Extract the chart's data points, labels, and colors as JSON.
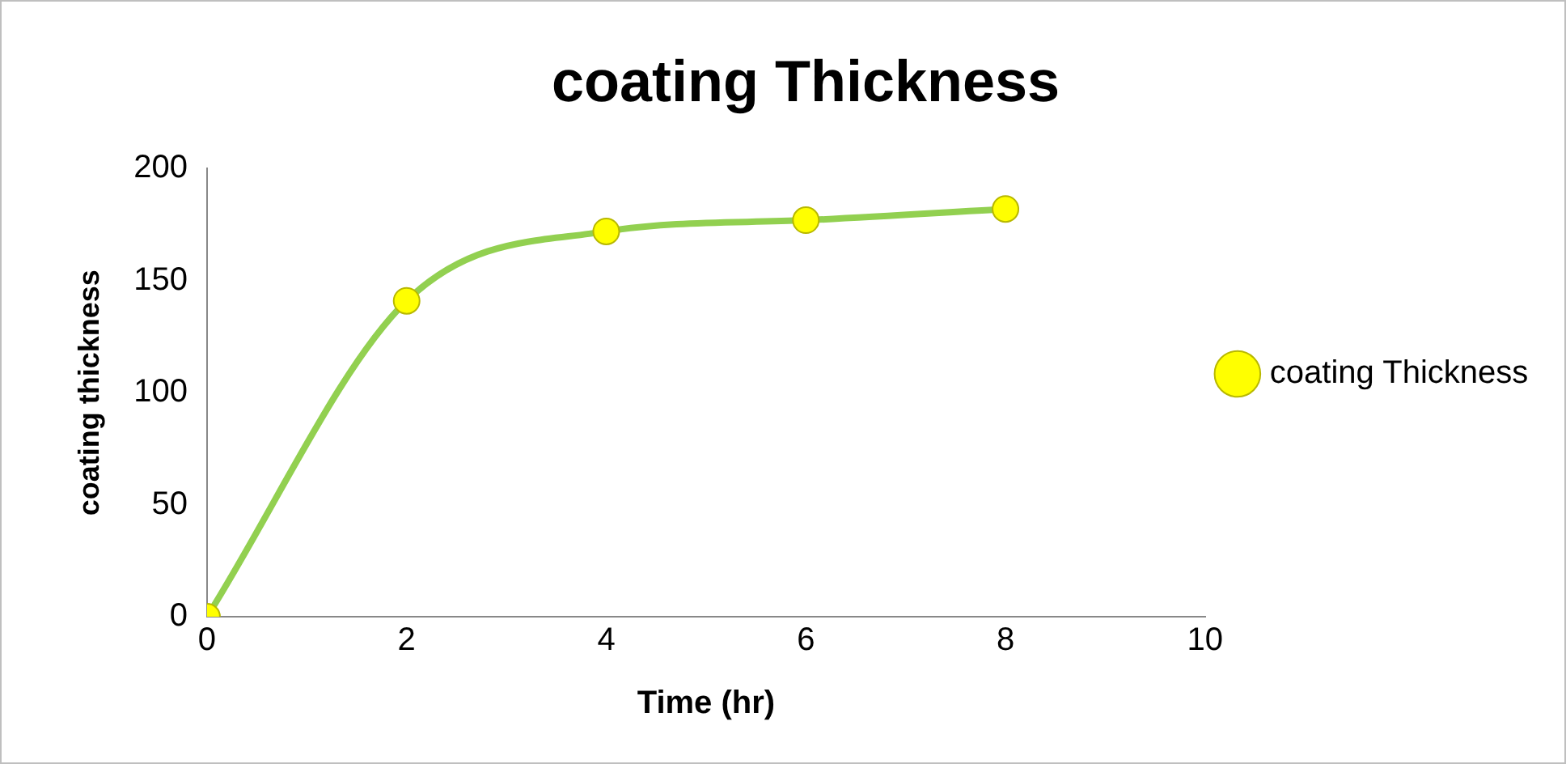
{
  "chart_data": {
    "type": "line",
    "title": "coating Thickness",
    "xlabel": "Time (hr)",
    "ylabel": "coating thickness",
    "x": [
      0,
      2,
      4,
      6,
      8
    ],
    "series": [
      {
        "name": "coating Thickness",
        "color": "#92d050",
        "colors": [
          "#ffff00",
          "#ffff00",
          "#ffff00",
          "#ffff00",
          "#ffff00"
        ],
        "values": [
          0,
          141,
          172,
          177,
          182
        ]
      }
    ],
    "xlim": [
      0,
      10
    ],
    "xticks": [
      0,
      2,
      4,
      6,
      8,
      10
    ],
    "ylim": [
      0,
      200
    ],
    "yticks": [
      0,
      50,
      100,
      150,
      200
    ],
    "grid": false,
    "legend": "right",
    "marker": "circle",
    "line_style": "solid"
  }
}
